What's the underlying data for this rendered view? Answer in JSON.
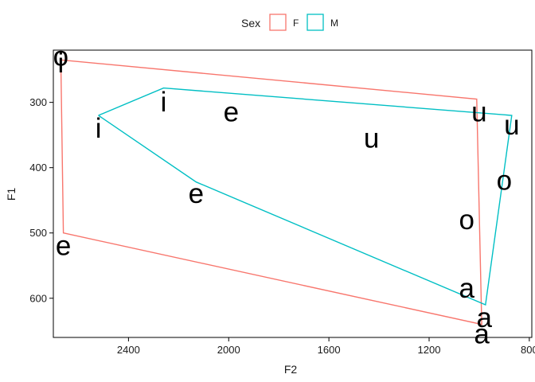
{
  "chart_data": {
    "type": "scatter",
    "title": "",
    "xlabel": "F2",
    "ylabel": "F1",
    "x_reversed": true,
    "y_reversed": true,
    "xlim": [
      2700,
      790
    ],
    "ylim": [
      220,
      660
    ],
    "x_ticks": [
      2400,
      2000,
      1600,
      1200,
      800
    ],
    "x_tick_labels": [
      "2400",
      "2000",
      "1600",
      "1200",
      "800"
    ],
    "y_ticks": [
      300,
      400,
      500,
      600
    ],
    "y_tick_labels": [
      "300",
      "400",
      "500",
      "600"
    ],
    "grid": false,
    "legend": {
      "title": "Sex",
      "position": "top",
      "entries": [
        {
          "label": "F",
          "color": "#F8766D"
        },
        {
          "label": "M",
          "color": "#00BFC4"
        }
      ]
    },
    "points": [
      {
        "label": "i",
        "x": 2670,
        "y": 240
      },
      {
        "label": "i",
        "x": 2260,
        "y": 300
      },
      {
        "label": "i",
        "x": 2520,
        "y": 340
      },
      {
        "label": "e",
        "x": 2660,
        "y": 520
      },
      {
        "label": "e",
        "x": 2130,
        "y": 440
      },
      {
        "label": "e",
        "x": 1990,
        "y": 315
      },
      {
        "label": "a",
        "x": 1050,
        "y": 585
      },
      {
        "label": "a",
        "x": 980,
        "y": 630
      },
      {
        "label": "a",
        "x": 990,
        "y": 655
      },
      {
        "label": "o",
        "x": 2670,
        "y": 230
      },
      {
        "label": "o",
        "x": 1050,
        "y": 480
      },
      {
        "label": "o",
        "x": 900,
        "y": 420
      },
      {
        "label": "u",
        "x": 1430,
        "y": 355
      },
      {
        "label": "u",
        "x": 1000,
        "y": 315
      },
      {
        "label": "u",
        "x": 870,
        "y": 335
      }
    ],
    "series": [
      {
        "name": "F",
        "color": "#F8766D",
        "x": [
          2670,
          1010,
          990,
          2660,
          2670
        ],
        "y": [
          235,
          295,
          640,
          500,
          235
        ]
      },
      {
        "name": "M",
        "color": "#00BFC4",
        "x": [
          2520,
          2260,
          870,
          975,
          2130,
          2520
        ],
        "y": [
          320,
          278,
          320,
          610,
          422,
          320
        ]
      }
    ]
  }
}
